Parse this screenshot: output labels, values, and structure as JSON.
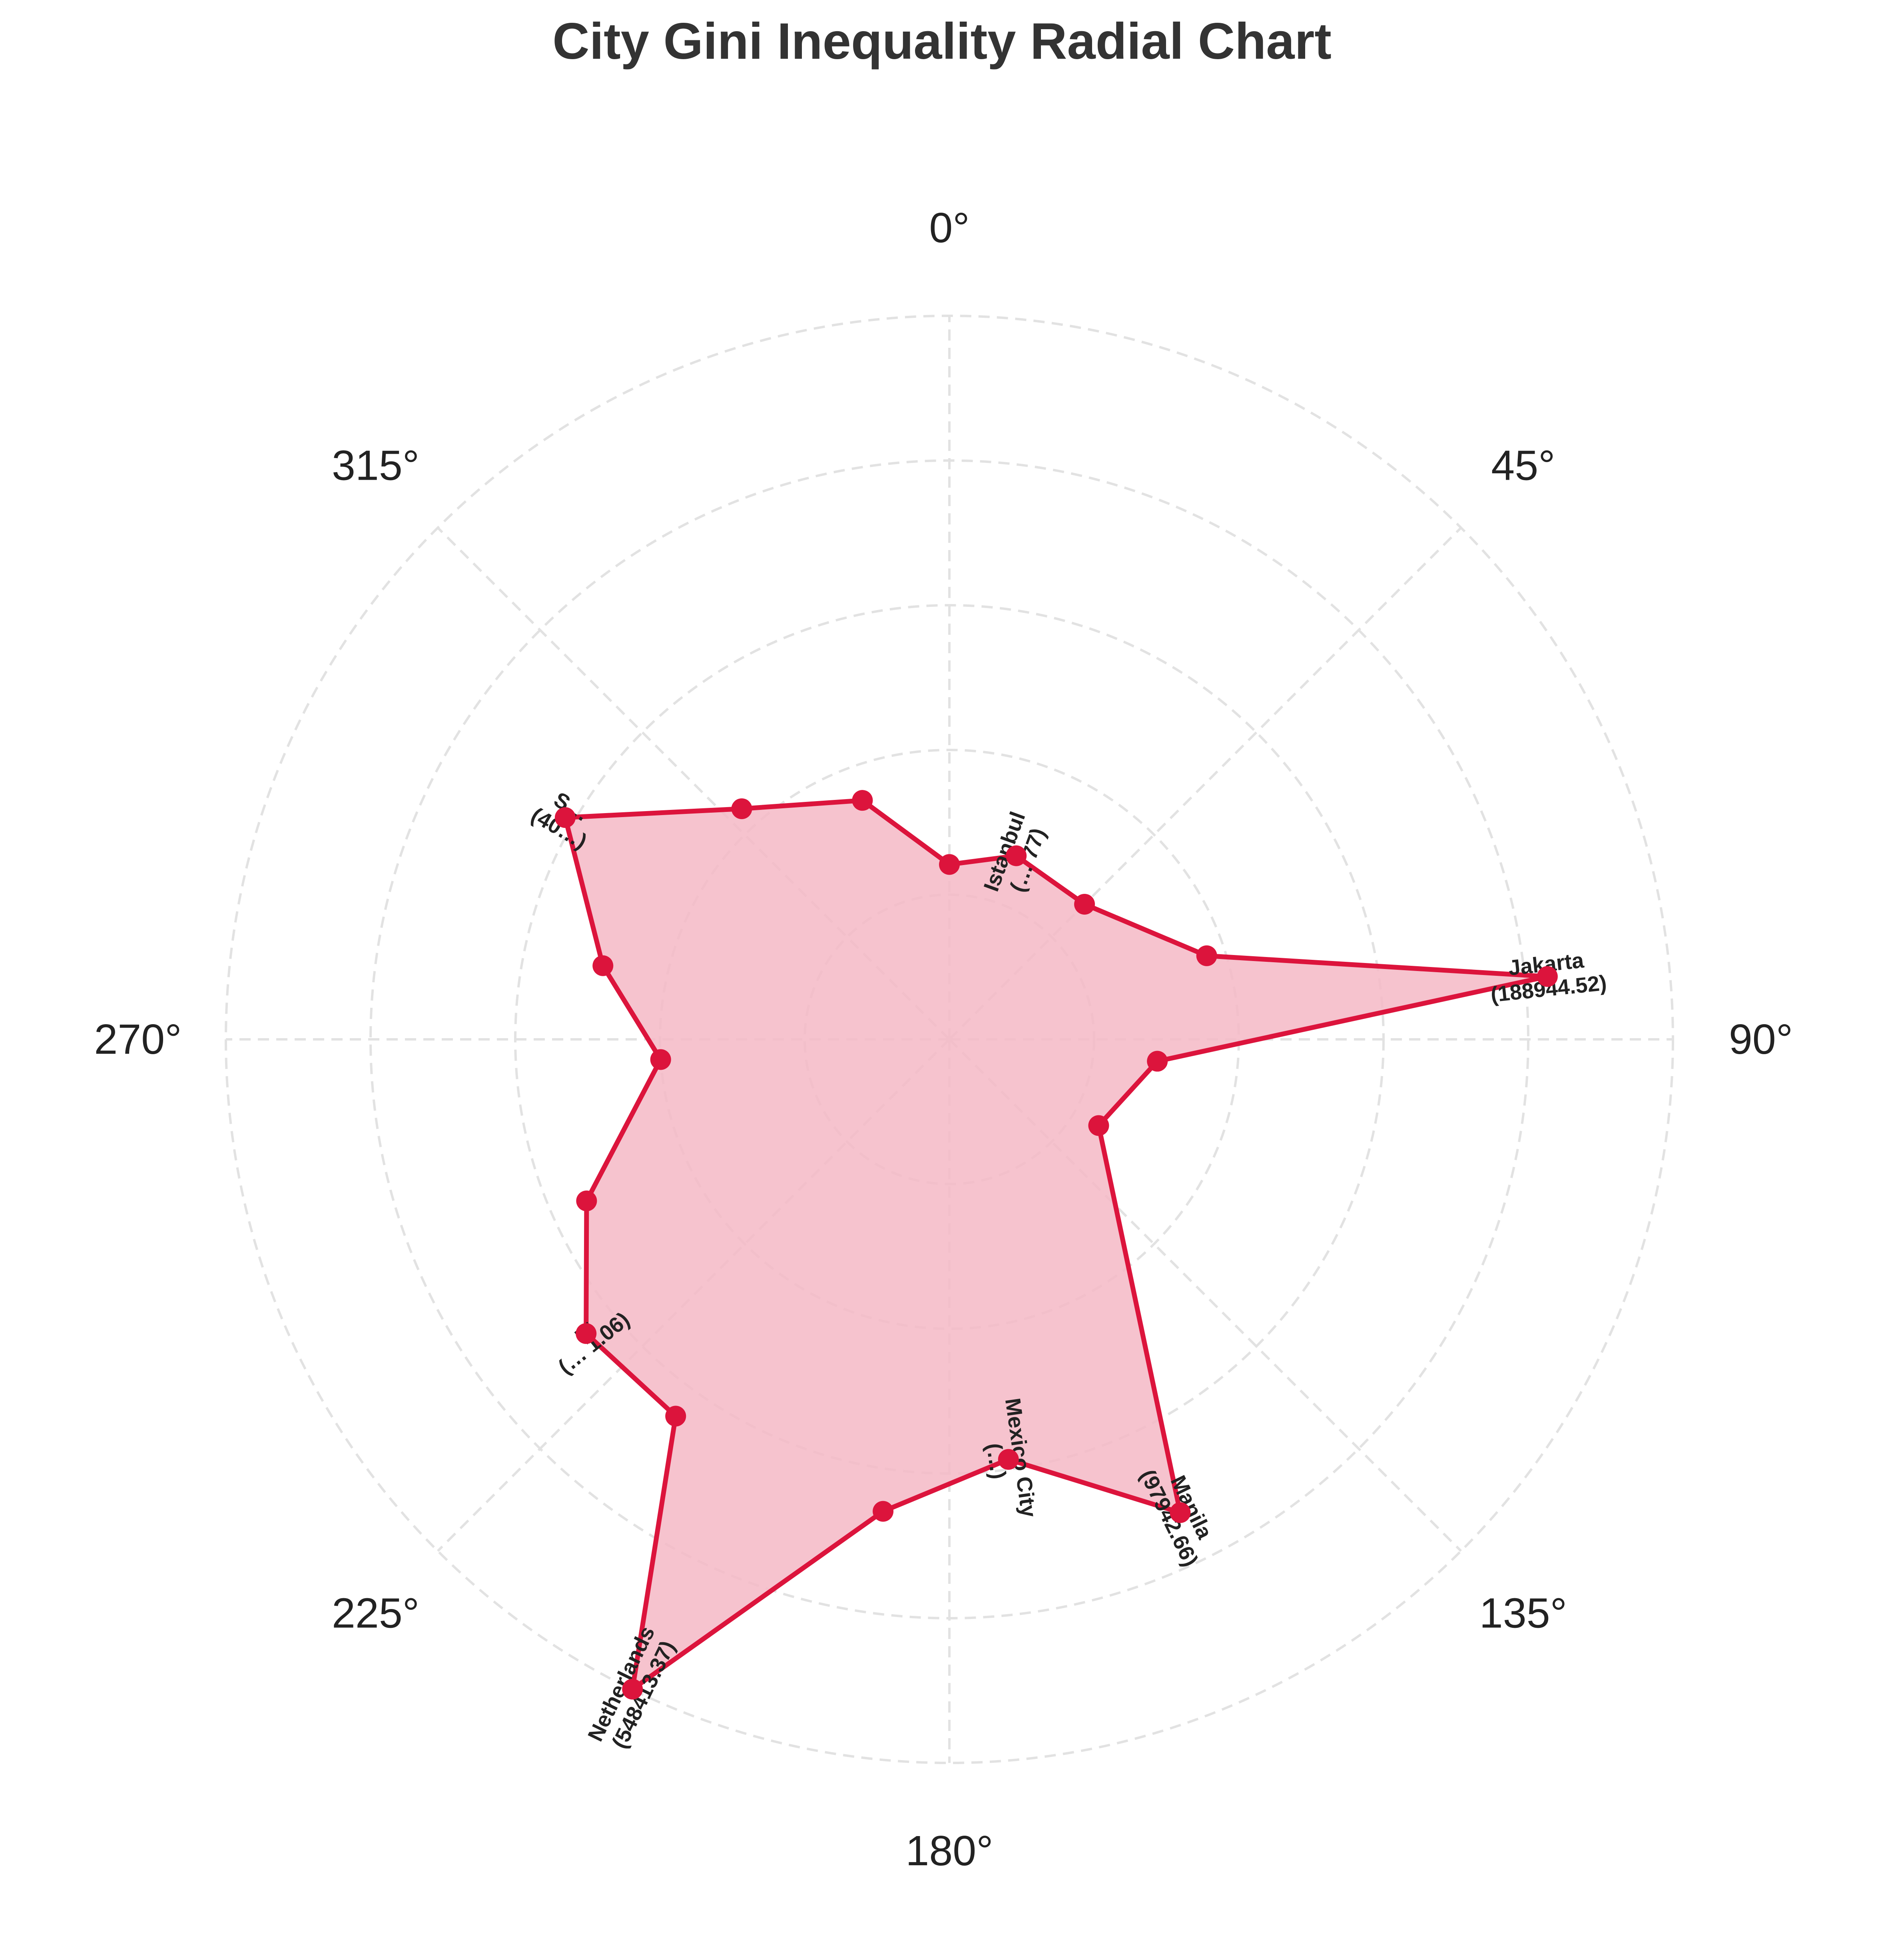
{
  "chart_data": {
    "type": "radar",
    "title": "City Gini Inequality Radial Chart",
    "angle_unit": "degrees",
    "angle_ticks": [
      "0°",
      "45°",
      "90°",
      "135°",
      "180°",
      "225°",
      "270°",
      "315°"
    ],
    "radial_tick_labels_shown": false,
    "grid": true,
    "series": [
      {
        "color": "#dc143c",
        "fill_color": "#f4b8c6",
        "points": [
          {
            "angle": 0,
            "value": 3600,
            "label": ""
          },
          {
            "angle": 20,
            "value": 4500,
            "label": "Istanbul\n(… 77)"
          },
          {
            "angle": 45,
            "value": 4300,
            "label": ""
          },
          {
            "angle": 72,
            "value": 9600,
            "label": ""
          },
          {
            "angle": 84,
            "value": 188944.52,
            "label": "Jakarta\n(188944.52)"
          },
          {
            "angle": 96,
            "value": 5200,
            "label": ""
          },
          {
            "angle": 120,
            "value": 3500,
            "label": ""
          },
          {
            "angle": 154,
            "value": 97942.66,
            "label": "Manila\n(97942.66)"
          },
          {
            "angle": 172,
            "value": 39500,
            "label": "Mexico City\n(…)"
          },
          {
            "angle": 188,
            "value": 63000,
            "label": ""
          },
          {
            "angle": 206,
            "value": 548413.37,
            "label": "Netherlands\n(548413.37)"
          },
          {
            "angle": 216,
            "value": 57200,
            "label": ""
          },
          {
            "angle": 231,
            "value": 58100,
            "label": "…\n(… 1.06)"
          },
          {
            "angle": 246,
            "value": 31000,
            "label": ""
          },
          {
            "angle": 266,
            "value": 11500,
            "label": ""
          },
          {
            "angle": 282,
            "value": 21000,
            "label": ""
          },
          {
            "angle": 300,
            "value": 47000,
            "label": "S…\n(40…)"
          },
          {
            "angle": 318,
            "value": 14000,
            "label": ""
          },
          {
            "angle": 340,
            "value": 8200,
            "label": ""
          }
        ]
      }
    ]
  }
}
